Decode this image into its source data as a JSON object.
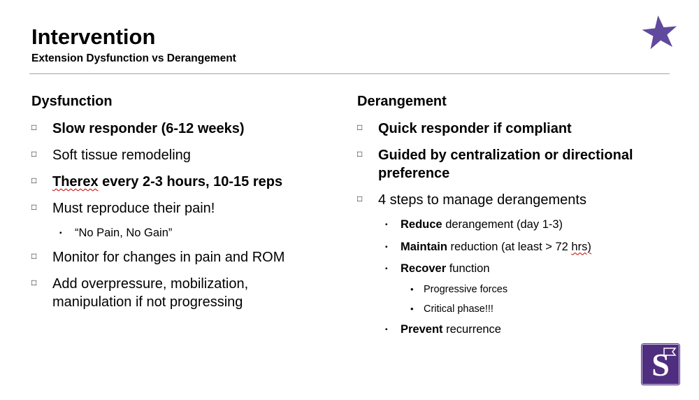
{
  "slide": {
    "title": "Intervention",
    "subtitle": "Extension Dysfunction vs Derangement"
  },
  "bullets": {
    "1": "□",
    "2": "▪",
    "3": "•"
  },
  "colors": {
    "star_purple": "#5f4a9e",
    "logo_purple": "#4f2d7f",
    "squiggle_red": "#c00000",
    "divider_gray": "#a6a6a6",
    "text_black": "#000000"
  },
  "logo": {
    "letter": "S"
  },
  "left": {
    "heading": "Dysfunction",
    "items": [
      {
        "level": 1,
        "segments": [
          {
            "t": "Slow responder (6-12 weeks)",
            "b": true
          }
        ]
      },
      {
        "level": 1,
        "segments": [
          {
            "t": "Soft tissue remodeling"
          }
        ]
      },
      {
        "level": 1,
        "segments": [
          {
            "t": "Therex",
            "b": true,
            "sq": true
          },
          {
            "t": " every 2-3 hours, 10-15 reps",
            "b": true
          }
        ]
      },
      {
        "level": 1,
        "segments": [
          {
            "t": "Must reproduce their pain!"
          }
        ]
      },
      {
        "level": 2,
        "segments": [
          {
            "t": "“No Pain, No Gain”"
          }
        ]
      },
      {
        "level": 1,
        "segments": [
          {
            "t": "Monitor for changes in pain and ROM"
          }
        ]
      },
      {
        "level": 1,
        "segments": [
          {
            "t": "Add overpressure, mobilization, manipulation if not progressing"
          }
        ]
      }
    ]
  },
  "right": {
    "heading": "Derangement",
    "items": [
      {
        "level": 1,
        "segments": [
          {
            "t": "Quick responder if compliant",
            "b": true
          }
        ]
      },
      {
        "level": 1,
        "segments": [
          {
            "t": "Guided by centralization or directional preference",
            "b": true
          }
        ]
      },
      {
        "level": 1,
        "segments": [
          {
            "t": "4 steps to manage derangements"
          }
        ]
      },
      {
        "level": 2,
        "segments": [
          {
            "t": "Reduce",
            "b": true
          },
          {
            "t": " derangement (day 1-3)"
          }
        ]
      },
      {
        "level": 2,
        "segments": [
          {
            "t": "Maintain",
            "b": true
          },
          {
            "t": " reduction (at least > 72 "
          },
          {
            "t": "hrs)",
            "sq": true
          }
        ]
      },
      {
        "level": 2,
        "segments": [
          {
            "t": "Recover",
            "b": true
          },
          {
            "t": " function"
          }
        ]
      },
      {
        "level": 3,
        "segments": [
          {
            "t": "Progressive forces"
          }
        ]
      },
      {
        "level": 3,
        "segments": [
          {
            "t": "Critical phase!!!"
          }
        ]
      },
      {
        "level": 2,
        "segments": [
          {
            "t": "Prevent",
            "b": true
          },
          {
            "t": " recurrence"
          }
        ]
      }
    ]
  }
}
